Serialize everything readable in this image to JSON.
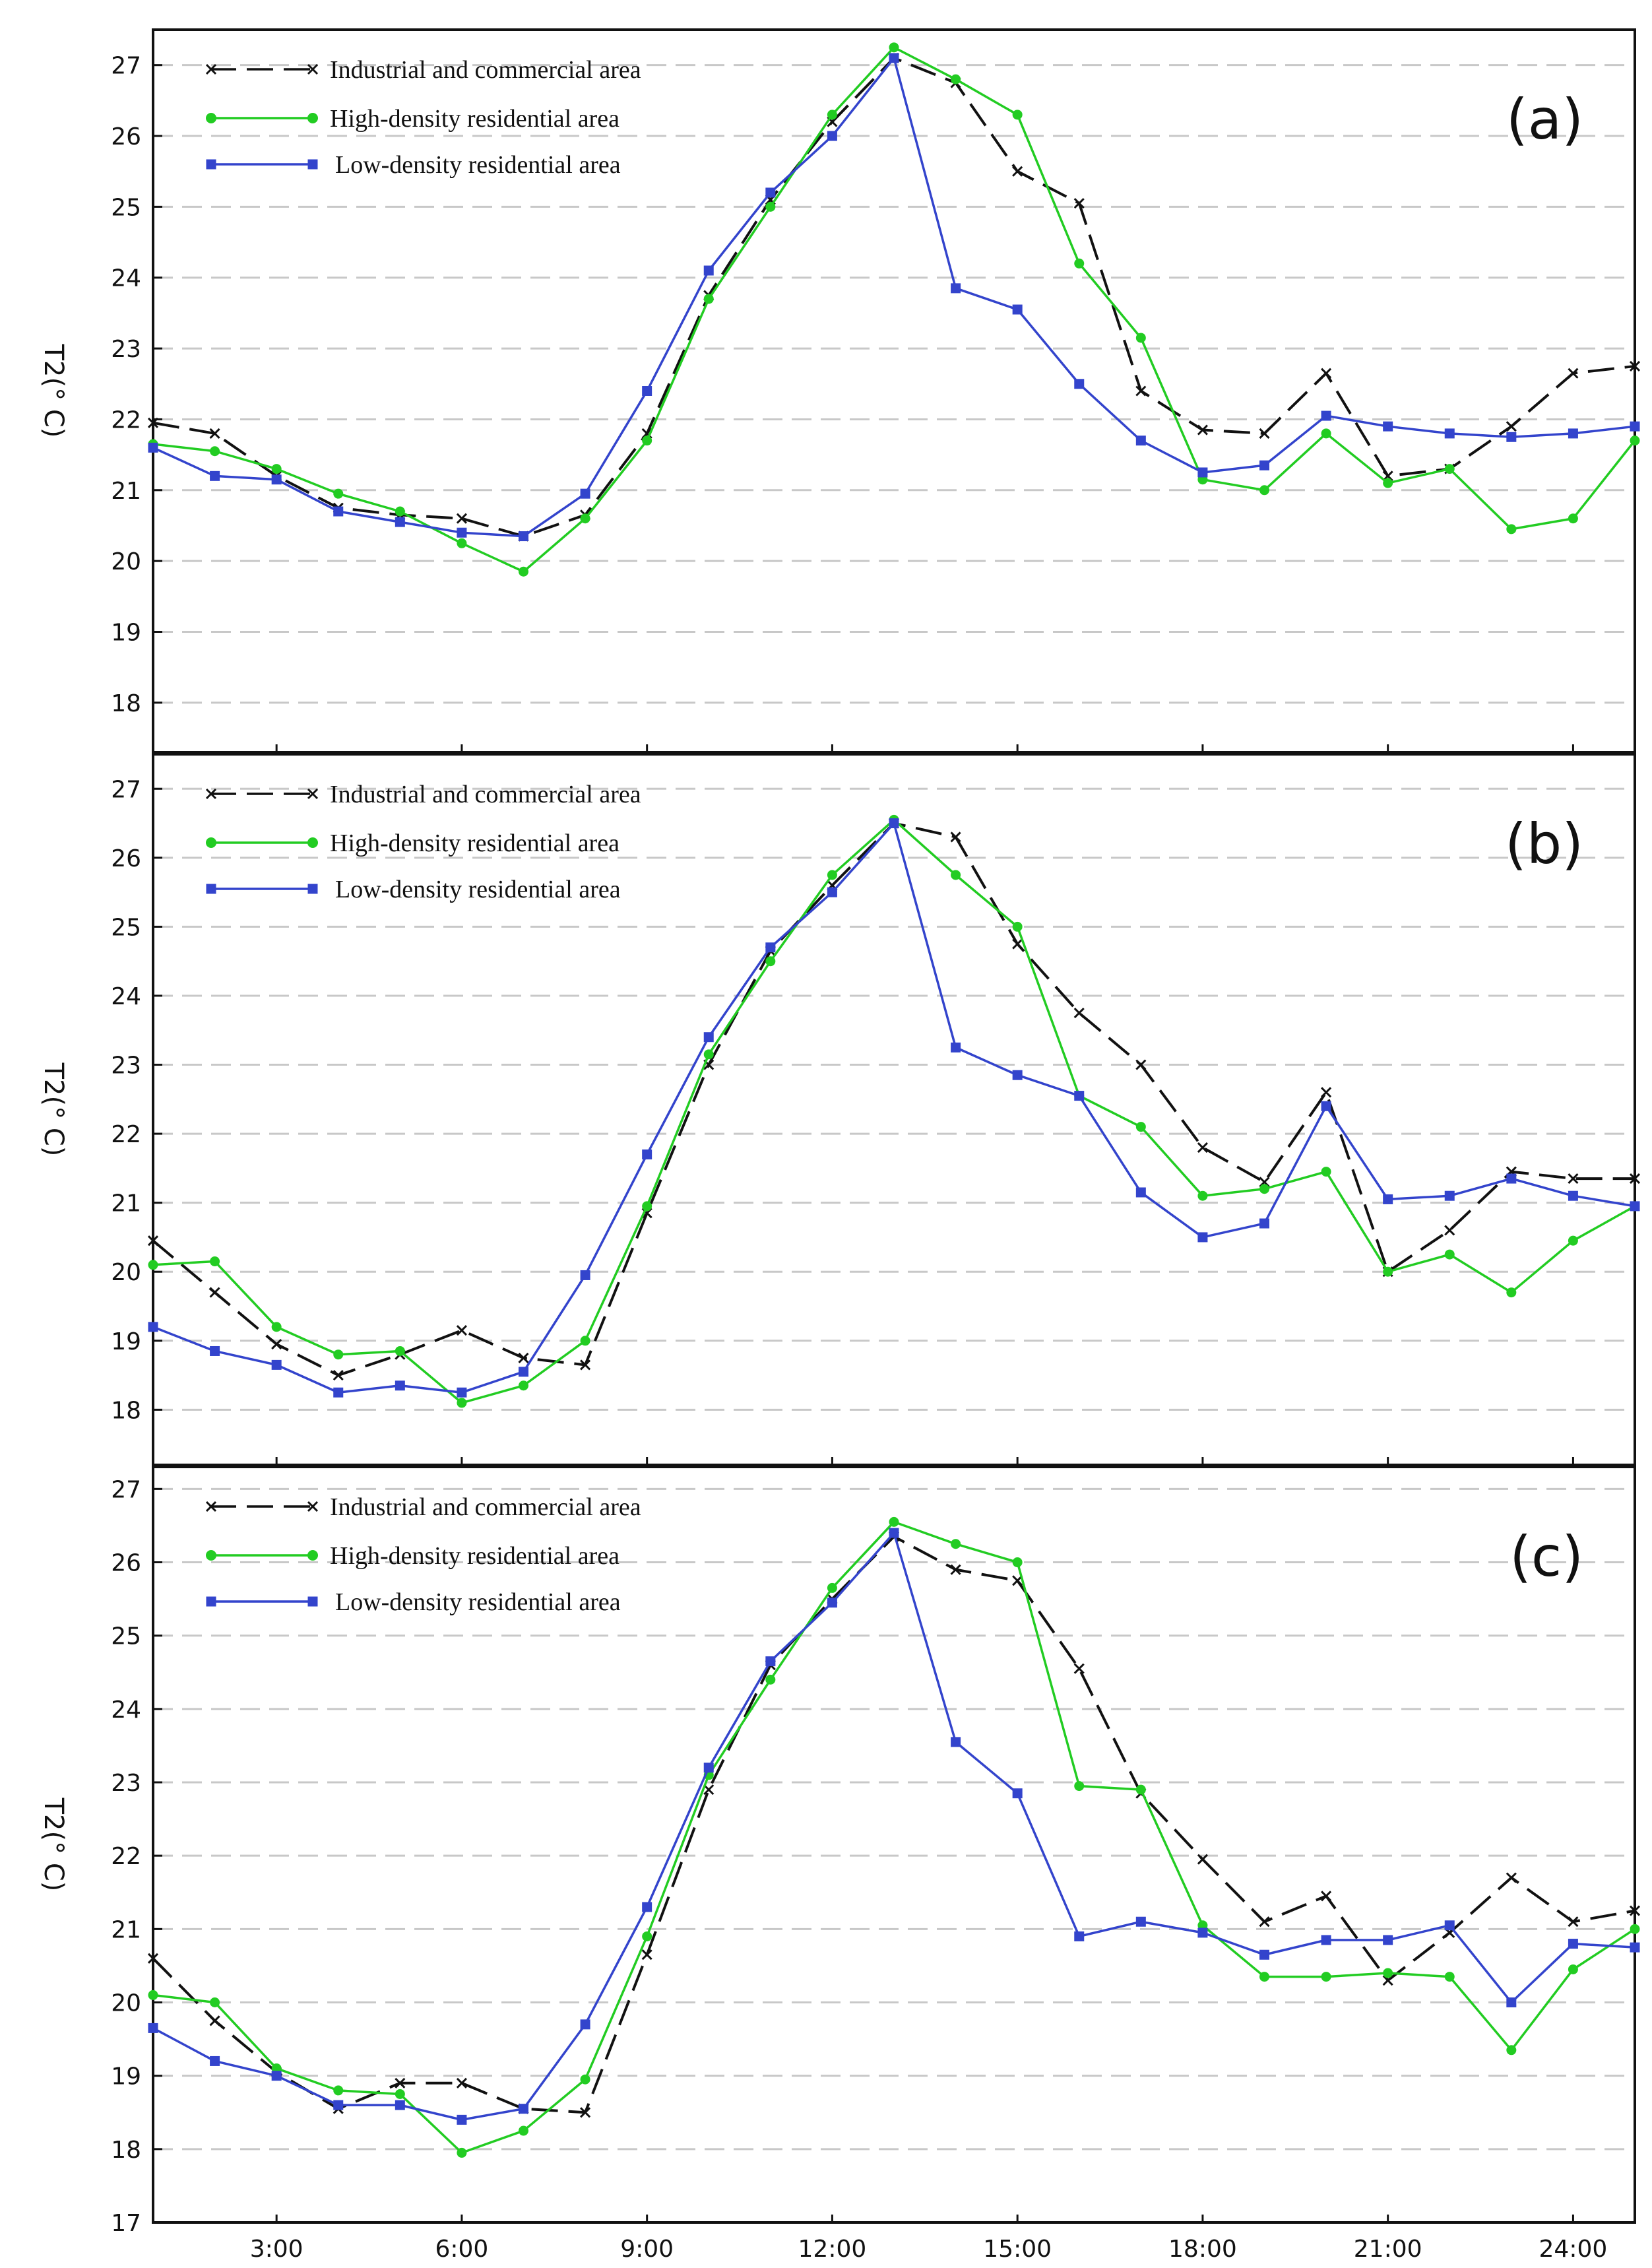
{
  "colors": {
    "industrial": "#111111",
    "high_density": "#22cc22",
    "low_density": "#3344cc",
    "grid": "#c8c8c8"
  },
  "x_labels": [
    "3:00",
    "6:00",
    "9:00",
    "12:00",
    "15:00",
    "18:00",
    "21:00",
    "24:00"
  ],
  "chart_data": [
    {
      "type": "line",
      "panel": "(a)",
      "ylabel": "T2(° C)",
      "ylim": [
        17.3,
        27.5
      ],
      "yticks": [
        18,
        19,
        20,
        21,
        22,
        23,
        24,
        25,
        26,
        27
      ],
      "xlim": [
        1,
        25
      ],
      "x": [
        1,
        2,
        3,
        4,
        5,
        6,
        7,
        8,
        9,
        10,
        11,
        12,
        13,
        14,
        15,
        16,
        17,
        18,
        19,
        20,
        21,
        22,
        23,
        24,
        25
      ],
      "series": [
        {
          "name": "Industrial and commercial area",
          "key": "industrial",
          "values": [
            21.95,
            21.8,
            21.2,
            20.75,
            20.65,
            20.6,
            20.35,
            20.65,
            21.8,
            23.75,
            25.1,
            26.2,
            27.1,
            26.75,
            25.5,
            25.05,
            22.4,
            21.85,
            21.8,
            22.65,
            21.2,
            21.3,
            21.9,
            22.65,
            22.75
          ]
        },
        {
          "name": "High-density residential area",
          "key": "high_density",
          "values": [
            21.65,
            21.55,
            21.3,
            20.95,
            20.7,
            20.25,
            19.85,
            20.6,
            21.7,
            23.7,
            25.0,
            26.3,
            27.25,
            26.8,
            26.3,
            24.2,
            23.15,
            21.15,
            21.0,
            21.8,
            21.1,
            21.3,
            20.45,
            20.6,
            21.7
          ]
        },
        {
          "name": "Low-density residential area",
          "key": "low_density",
          "values": [
            21.6,
            21.2,
            21.15,
            20.7,
            20.55,
            20.4,
            20.35,
            20.95,
            22.4,
            24.1,
            25.2,
            26.0,
            27.1,
            23.85,
            23.55,
            22.5,
            21.7,
            21.25,
            21.35,
            22.05,
            21.9,
            21.8,
            21.75,
            21.8,
            21.9
          ]
        }
      ]
    },
    {
      "type": "line",
      "panel": "(b)",
      "ylabel": "T2(° C)",
      "ylim": [
        17.2,
        27.5
      ],
      "yticks": [
        18,
        19,
        20,
        21,
        22,
        23,
        24,
        25,
        26,
        27
      ],
      "xlim": [
        1,
        25
      ],
      "x": [
        1,
        2,
        3,
        4,
        5,
        6,
        7,
        8,
        9,
        10,
        11,
        12,
        13,
        14,
        15,
        16,
        17,
        18,
        19,
        20,
        21,
        22,
        23,
        24,
        25
      ],
      "series": [
        {
          "name": "Industrial and commercial area",
          "key": "industrial",
          "values": [
            20.45,
            19.7,
            18.95,
            18.5,
            18.8,
            19.15,
            18.75,
            18.65,
            20.85,
            23.0,
            24.65,
            25.6,
            26.5,
            26.3,
            24.75,
            23.75,
            23.0,
            21.8,
            21.3,
            22.6,
            20.0,
            20.6,
            21.45,
            21.35,
            21.35
          ]
        },
        {
          "name": "High-density residential area",
          "key": "high_density",
          "values": [
            20.1,
            20.15,
            19.2,
            18.8,
            18.85,
            18.1,
            18.35,
            19.0,
            20.95,
            23.15,
            24.5,
            25.75,
            26.55,
            25.75,
            25.0,
            22.55,
            22.1,
            21.1,
            21.2,
            21.45,
            20.0,
            20.25,
            19.7,
            20.45,
            20.95
          ]
        },
        {
          "name": "Low-density residential area",
          "key": "low_density",
          "values": [
            19.2,
            18.85,
            18.65,
            18.25,
            18.35,
            18.25,
            18.55,
            19.95,
            21.7,
            23.4,
            24.7,
            25.5,
            26.5,
            23.25,
            22.85,
            22.55,
            21.15,
            20.5,
            20.7,
            22.4,
            21.05,
            21.1,
            21.35,
            21.1,
            20.95
          ]
        }
      ]
    },
    {
      "type": "line",
      "panel": "(c)",
      "ylabel": "T2(° C)",
      "ylim": [
        17,
        27.3
      ],
      "yticks": [
        17,
        18,
        19,
        20,
        21,
        22,
        23,
        24,
        25,
        26,
        27
      ],
      "xlim": [
        1,
        25
      ],
      "x": [
        1,
        2,
        3,
        4,
        5,
        6,
        7,
        8,
        9,
        10,
        11,
        12,
        13,
        14,
        15,
        16,
        17,
        18,
        19,
        20,
        21,
        22,
        23,
        24,
        25
      ],
      "series": [
        {
          "name": "Industrial and commercial area",
          "key": "industrial",
          "values": [
            20.6,
            19.75,
            19.05,
            18.55,
            18.9,
            18.9,
            18.55,
            18.5,
            20.65,
            22.9,
            24.6,
            25.5,
            26.35,
            25.9,
            25.75,
            24.55,
            22.85,
            21.95,
            21.1,
            21.45,
            20.3,
            20.95,
            21.7,
            21.1,
            21.25
          ]
        },
        {
          "name": "High-density residential area",
          "key": "high_density",
          "values": [
            20.1,
            20.0,
            19.1,
            18.8,
            18.75,
            17.95,
            18.25,
            18.95,
            20.9,
            23.1,
            24.4,
            25.65,
            26.55,
            26.25,
            26.0,
            22.95,
            22.9,
            21.05,
            20.35,
            20.35,
            20.4,
            20.35,
            19.35,
            20.45,
            21.0
          ]
        },
        {
          "name": "Low-density residential area",
          "key": "low_density",
          "values": [
            19.65,
            19.2,
            19.0,
            18.6,
            18.6,
            18.4,
            18.55,
            19.7,
            21.3,
            23.2,
            24.65,
            25.45,
            26.4,
            23.55,
            22.85,
            20.9,
            21.1,
            20.95,
            20.65,
            20.85,
            20.85,
            21.05,
            20.0,
            20.8,
            20.75
          ]
        }
      ]
    }
  ]
}
